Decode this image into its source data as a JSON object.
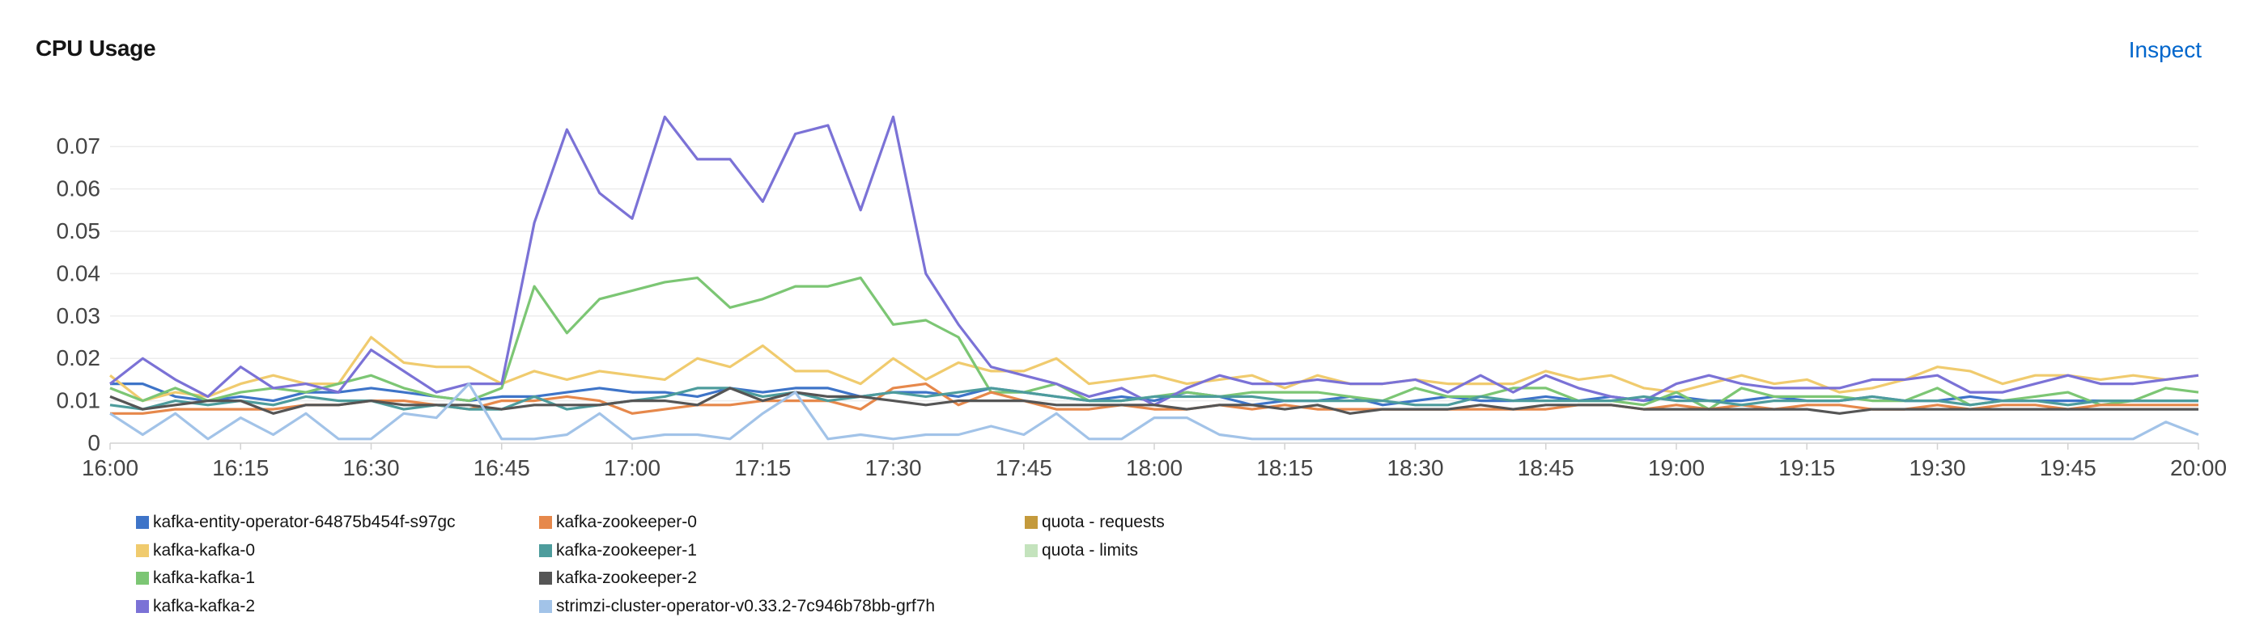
{
  "header": {
    "title": "CPU Usage",
    "inspect_label": "Inspect"
  },
  "chart_data": {
    "type": "line",
    "title": "CPU Usage",
    "xlabel": "",
    "ylabel": "",
    "x_start": "16:00",
    "x_end": "20:00",
    "x_step_minutes": 3.75,
    "x_ticks": [
      "16:00",
      "16:15",
      "16:30",
      "16:45",
      "17:00",
      "17:15",
      "17:30",
      "17:45",
      "18:00",
      "18:15",
      "18:30",
      "18:45",
      "19:00",
      "19:15",
      "19:30",
      "19:45",
      "20:00"
    ],
    "ylim": [
      0,
      0.075
    ],
    "y_ticks": [
      0,
      0.01,
      0.02,
      0.03,
      0.04,
      0.05,
      0.06,
      0.07
    ],
    "y_tick_labels": [
      "0",
      "0.01",
      "0.02",
      "0.03",
      "0.04",
      "0.05",
      "0.06",
      "0.07"
    ],
    "grid": true,
    "legend_position": "bottom",
    "series": [
      {
        "name": "kafka-entity-operator-64875b454f-s97gc",
        "color": "#3e74c8",
        "values": [
          0.014,
          0.014,
          0.011,
          0.01,
          0.011,
          0.01,
          0.012,
          0.012,
          0.013,
          0.012,
          0.011,
          0.01,
          0.011,
          0.011,
          0.012,
          0.013,
          0.012,
          0.012,
          0.011,
          0.013,
          0.012,
          0.013,
          0.013,
          0.011,
          0.012,
          0.012,
          0.011,
          0.013,
          0.012,
          0.011,
          0.01,
          0.011,
          0.01,
          0.012,
          0.011,
          0.009,
          0.01,
          0.01,
          0.011,
          0.009,
          0.01,
          0.011,
          0.01,
          0.01,
          0.011,
          0.01,
          0.011,
          0.01,
          0.011,
          0.01,
          0.01,
          0.011,
          0.01,
          0.01,
          0.011,
          0.01,
          0.01,
          0.011,
          0.01,
          0.01,
          0.01,
          0.01,
          0.01,
          0.01,
          0.01
        ]
      },
      {
        "name": "kafka-kafka-0",
        "color": "#f0cb6e",
        "values": [
          0.016,
          0.01,
          0.012,
          0.011,
          0.014,
          0.016,
          0.014,
          0.014,
          0.025,
          0.019,
          0.018,
          0.018,
          0.014,
          0.017,
          0.015,
          0.017,
          0.016,
          0.015,
          0.02,
          0.018,
          0.023,
          0.017,
          0.017,
          0.014,
          0.02,
          0.015,
          0.019,
          0.017,
          0.017,
          0.02,
          0.014,
          0.015,
          0.016,
          0.014,
          0.015,
          0.016,
          0.013,
          0.016,
          0.014,
          0.014,
          0.015,
          0.014,
          0.014,
          0.014,
          0.017,
          0.015,
          0.016,
          0.013,
          0.012,
          0.014,
          0.016,
          0.014,
          0.015,
          0.012,
          0.013,
          0.015,
          0.018,
          0.017,
          0.014,
          0.016,
          0.016,
          0.015,
          0.016,
          0.015,
          0.016
        ]
      },
      {
        "name": "kafka-kafka-1",
        "color": "#7cc674",
        "values": [
          0.013,
          0.01,
          0.013,
          0.01,
          0.012,
          0.013,
          0.012,
          0.014,
          0.016,
          0.013,
          0.011,
          0.01,
          0.013,
          0.037,
          0.026,
          0.034,
          0.036,
          0.038,
          0.039,
          0.032,
          0.034,
          0.037,
          0.037,
          0.039,
          0.028,
          0.029,
          0.025,
          0.012,
          0.012,
          0.014,
          0.01,
          0.01,
          0.011,
          0.012,
          0.011,
          0.012,
          0.012,
          0.012,
          0.011,
          0.01,
          0.013,
          0.011,
          0.011,
          0.013,
          0.013,
          0.01,
          0.01,
          0.009,
          0.012,
          0.008,
          0.013,
          0.011,
          0.011,
          0.011,
          0.01,
          0.01,
          0.013,
          0.009,
          0.01,
          0.011,
          0.012,
          0.009,
          0.01,
          0.013,
          0.012
        ]
      },
      {
        "name": "kafka-kafka-2",
        "color": "#7b72d6",
        "values": [
          0.014,
          0.02,
          0.015,
          0.011,
          0.018,
          0.013,
          0.014,
          0.012,
          0.022,
          0.017,
          0.012,
          0.014,
          0.014,
          0.052,
          0.074,
          0.059,
          0.053,
          0.077,
          0.067,
          0.067,
          0.057,
          0.073,
          0.075,
          0.055,
          0.077,
          0.04,
          0.028,
          0.018,
          0.016,
          0.014,
          0.011,
          0.013,
          0.009,
          0.013,
          0.016,
          0.014,
          0.014,
          0.015,
          0.014,
          0.014,
          0.015,
          0.012,
          0.016,
          0.012,
          0.016,
          0.013,
          0.011,
          0.01,
          0.014,
          0.016,
          0.014,
          0.013,
          0.013,
          0.013,
          0.015,
          0.015,
          0.016,
          0.012,
          0.012,
          0.014,
          0.016,
          0.014,
          0.014,
          0.015,
          0.016
        ]
      },
      {
        "name": "kafka-zookeeper-0",
        "color": "#e6884b",
        "values": [
          0.007,
          0.007,
          0.008,
          0.008,
          0.008,
          0.008,
          0.009,
          0.009,
          0.01,
          0.01,
          0.009,
          0.008,
          0.01,
          0.01,
          0.011,
          0.01,
          0.007,
          0.008,
          0.009,
          0.009,
          0.01,
          0.01,
          0.01,
          0.008,
          0.013,
          0.014,
          0.009,
          0.012,
          0.01,
          0.008,
          0.008,
          0.009,
          0.008,
          0.008,
          0.009,
          0.008,
          0.009,
          0.008,
          0.008,
          0.008,
          0.008,
          0.008,
          0.008,
          0.008,
          0.008,
          0.009,
          0.009,
          0.008,
          0.009,
          0.008,
          0.009,
          0.008,
          0.009,
          0.009,
          0.008,
          0.008,
          0.009,
          0.008,
          0.009,
          0.009,
          0.008,
          0.009,
          0.009,
          0.009,
          0.009
        ]
      },
      {
        "name": "kafka-zookeeper-1",
        "color": "#4d9c9c",
        "values": [
          0.009,
          0.008,
          0.01,
          0.009,
          0.01,
          0.009,
          0.011,
          0.01,
          0.01,
          0.008,
          0.009,
          0.008,
          0.008,
          0.011,
          0.008,
          0.009,
          0.01,
          0.011,
          0.013,
          0.013,
          0.011,
          0.012,
          0.01,
          0.011,
          0.012,
          0.011,
          0.012,
          0.013,
          0.012,
          0.011,
          0.01,
          0.01,
          0.011,
          0.011,
          0.011,
          0.011,
          0.01,
          0.01,
          0.01,
          0.01,
          0.009,
          0.009,
          0.011,
          0.01,
          0.01,
          0.01,
          0.01,
          0.011,
          0.01,
          0.01,
          0.009,
          0.01,
          0.01,
          0.01,
          0.011,
          0.01,
          0.01,
          0.009,
          0.01,
          0.01,
          0.009,
          0.01,
          0.01,
          0.01,
          0.01
        ]
      },
      {
        "name": "kafka-zookeeper-2",
        "color": "#555555",
        "values": [
          0.011,
          0.008,
          0.009,
          0.01,
          0.01,
          0.007,
          0.009,
          0.009,
          0.01,
          0.009,
          0.009,
          0.009,
          0.008,
          0.009,
          0.009,
          0.009,
          0.01,
          0.01,
          0.009,
          0.013,
          0.01,
          0.012,
          0.011,
          0.011,
          0.01,
          0.009,
          0.01,
          0.01,
          0.01,
          0.009,
          0.009,
          0.009,
          0.009,
          0.008,
          0.009,
          0.009,
          0.008,
          0.009,
          0.007,
          0.008,
          0.008,
          0.008,
          0.009,
          0.008,
          0.009,
          0.009,
          0.009,
          0.008,
          0.008,
          0.008,
          0.008,
          0.008,
          0.008,
          0.007,
          0.008,
          0.008,
          0.008,
          0.008,
          0.008,
          0.008,
          0.008,
          0.008,
          0.008,
          0.008,
          0.008
        ]
      },
      {
        "name": "strimzi-cluster-operator-v0.33.2-7c946b78bb-grf7h",
        "color": "#a2c3e8",
        "values": [
          0.007,
          0.002,
          0.007,
          0.001,
          0.006,
          0.002,
          0.007,
          0.001,
          0.001,
          0.007,
          0.006,
          0.014,
          0.001,
          0.001,
          0.002,
          0.007,
          0.001,
          0.002,
          0.002,
          0.001,
          0.007,
          0.012,
          0.001,
          0.002,
          0.001,
          0.002,
          0.002,
          0.004,
          0.002,
          0.007,
          0.001,
          0.001,
          0.006,
          0.006,
          0.002,
          0.001,
          0.001,
          0.001,
          0.001,
          0.001,
          0.001,
          0.001,
          0.001,
          0.001,
          0.001,
          0.001,
          0.001,
          0.001,
          0.001,
          0.001,
          0.001,
          0.001,
          0.001,
          0.001,
          0.001,
          0.001,
          0.001,
          0.001,
          0.001,
          0.001,
          0.001,
          0.001,
          0.001,
          0.005,
          0.002
        ]
      },
      {
        "name": "quota - requests",
        "color": "#c49a3c",
        "values": []
      },
      {
        "name": "quota - limits",
        "color": "#c4e3bd",
        "values": []
      }
    ]
  }
}
